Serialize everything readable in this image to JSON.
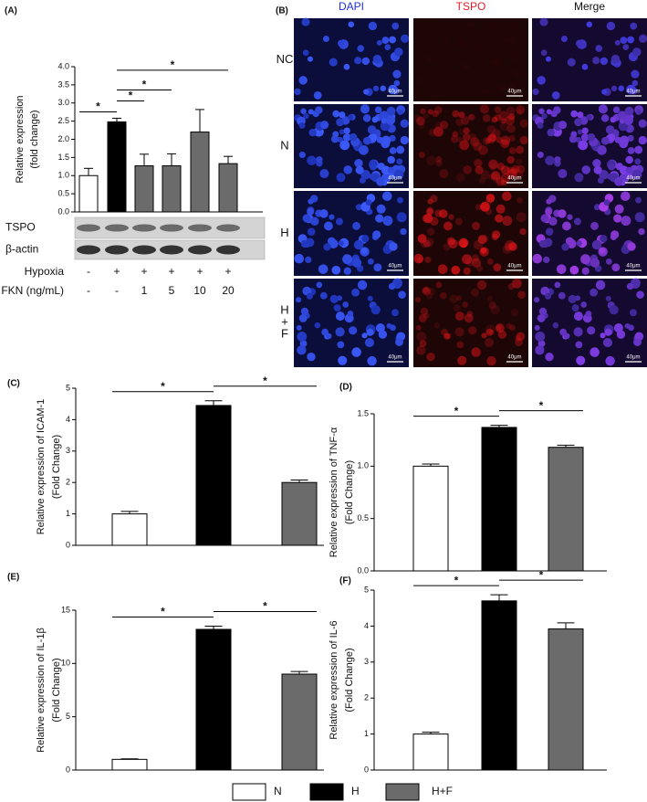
{
  "chart_data": [
    {
      "type": "bar",
      "panel": "(A)",
      "ylabel": [
        "Relative expression",
        "(fold change)"
      ],
      "values": [
        1.0,
        2.48,
        1.27,
        1.27,
        2.2,
        1.33
      ],
      "errors": [
        0.2,
        0.1,
        0.32,
        0.33,
        0.62,
        0.2
      ],
      "colors": [
        "#ffffff",
        "#000000",
        "#6b6b6b",
        "#6b6b6b",
        "#6b6b6b",
        "#6b6b6b"
      ],
      "ylim": [
        0,
        4
      ],
      "yticks": [
        {
          "value": 0,
          "label": "0.0"
        },
        0.5,
        {
          "value": 1,
          "label": "1.0"
        },
        1.5,
        {
          "value": 2,
          "label": "2.0"
        },
        2.5,
        {
          "value": 3,
          "label": "3.0"
        },
        3.5,
        {
          "value": 4,
          "label": "4.0"
        }
      ],
      "significance": [
        {
          "from": 0,
          "to": 1,
          "label": "*"
        },
        {
          "from": 1,
          "to": 2,
          "label": "*"
        },
        {
          "from": 1,
          "to": 3,
          "label": "*"
        },
        {
          "from": 1,
          "to": 5,
          "label": "*"
        }
      ],
      "blot": [
        "TSPO",
        "β-actin"
      ],
      "conditions": [
        {
          "label": "Hypoxia",
          "entries": [
            "-",
            "+",
            "+",
            "+",
            "+",
            "+"
          ]
        },
        {
          "label": "FKN (ng/mL)",
          "entries": [
            "-",
            "-",
            "1",
            "5",
            "10",
            "20"
          ]
        }
      ]
    },
    {
      "type": "bar",
      "panel": "(C)",
      "ylabel": [
        "Relative expression of ICAM-1",
        "(Fold Change)"
      ],
      "values": [
        1.0,
        4.45,
        2.0
      ],
      "errors": [
        0.08,
        0.15,
        0.08
      ],
      "ylim": [
        0,
        5
      ],
      "yticks": [
        0,
        1,
        2,
        3,
        4,
        5
      ],
      "significance": [
        {
          "from": 0,
          "to": 1,
          "label": "*"
        },
        {
          "from": 1,
          "to": 2,
          "label": "*"
        }
      ]
    },
    {
      "type": "bar",
      "panel": "(D)",
      "ylabel": [
        "Relative expression of TNF-α",
        "(Fold Change)"
      ],
      "values": [
        1.0,
        1.37,
        1.18
      ],
      "errors": [
        0.02,
        0.02,
        0.02
      ],
      "ylim": [
        0,
        1.5
      ],
      "yticks": [
        {
          "value": 0,
          "label": "0.0"
        },
        0.5,
        {
          "value": 1,
          "label": "1.0"
        },
        1.5
      ],
      "significance": [
        {
          "from": 0,
          "to": 1,
          "label": "*"
        },
        {
          "from": 1,
          "to": 2,
          "label": "*"
        }
      ]
    },
    {
      "type": "bar",
      "panel": "(E)",
      "ylabel": [
        "Relative expression of IL-1β",
        "(Fold Change)"
      ],
      "values": [
        1.0,
        13.2,
        9.0
      ],
      "errors": [
        0.05,
        0.3,
        0.25
      ],
      "ylim": [
        0,
        15
      ],
      "yticks": [
        0,
        5,
        10,
        15
      ],
      "significance": [
        {
          "from": 0,
          "to": 1,
          "label": "*"
        },
        {
          "from": 1,
          "to": 2,
          "label": "*"
        }
      ]
    },
    {
      "type": "bar",
      "panel": "(F)",
      "ylabel": [
        "Relative expression of IL-6",
        "(Fold Change)"
      ],
      "values": [
        1.0,
        4.7,
        3.92
      ],
      "errors": [
        0.05,
        0.17,
        0.17
      ],
      "ylim": [
        0,
        5
      ],
      "yticks": [
        0,
        1,
        2,
        3,
        4,
        5
      ],
      "significance": [
        {
          "from": 0,
          "to": 1,
          "label": "*"
        },
        {
          "from": 1,
          "to": 2,
          "label": "*"
        }
      ]
    }
  ],
  "legend": {
    "series": [
      {
        "name": "N",
        "color": "#ffffff"
      },
      {
        "name": "H",
        "color": "#000000"
      },
      {
        "name": "H+F",
        "color": "#6b6b6b"
      }
    ]
  },
  "figure_b": {
    "panel": "(B)",
    "columns": [
      "DAPI",
      "TSPO",
      "Merge"
    ],
    "column_colors": [
      "#1f2fd8",
      "#e01e2a",
      "#111111"
    ],
    "rows": [
      "NC",
      "N",
      "H",
      "H+F"
    ],
    "scale_bar": "40μm"
  }
}
